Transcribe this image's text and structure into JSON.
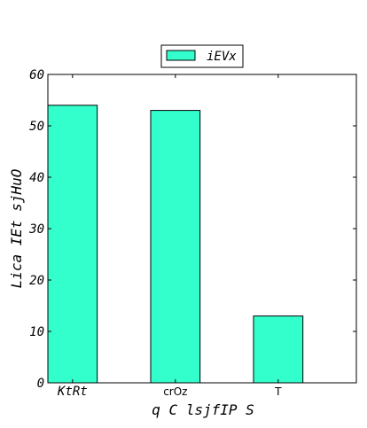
{
  "chart_data": {
    "type": "bar",
    "categories": [
      "KtRt",
      "crOz",
      "T"
    ],
    "category_label_styles": [
      "mono-italic",
      "sans",
      "sans"
    ],
    "series": [
      {
        "name": "iEVx",
        "values": [
          54,
          53,
          13
        ],
        "color": "#33ffcc"
      }
    ],
    "xlabel": "q C lsjfIP S",
    "ylabel": "Lica IEt sjHuO",
    "ylim": [
      0,
      60
    ],
    "yticks": [
      0,
      10,
      20,
      30,
      40,
      50,
      60
    ],
    "grid": false,
    "legend_position": "top-center"
  }
}
